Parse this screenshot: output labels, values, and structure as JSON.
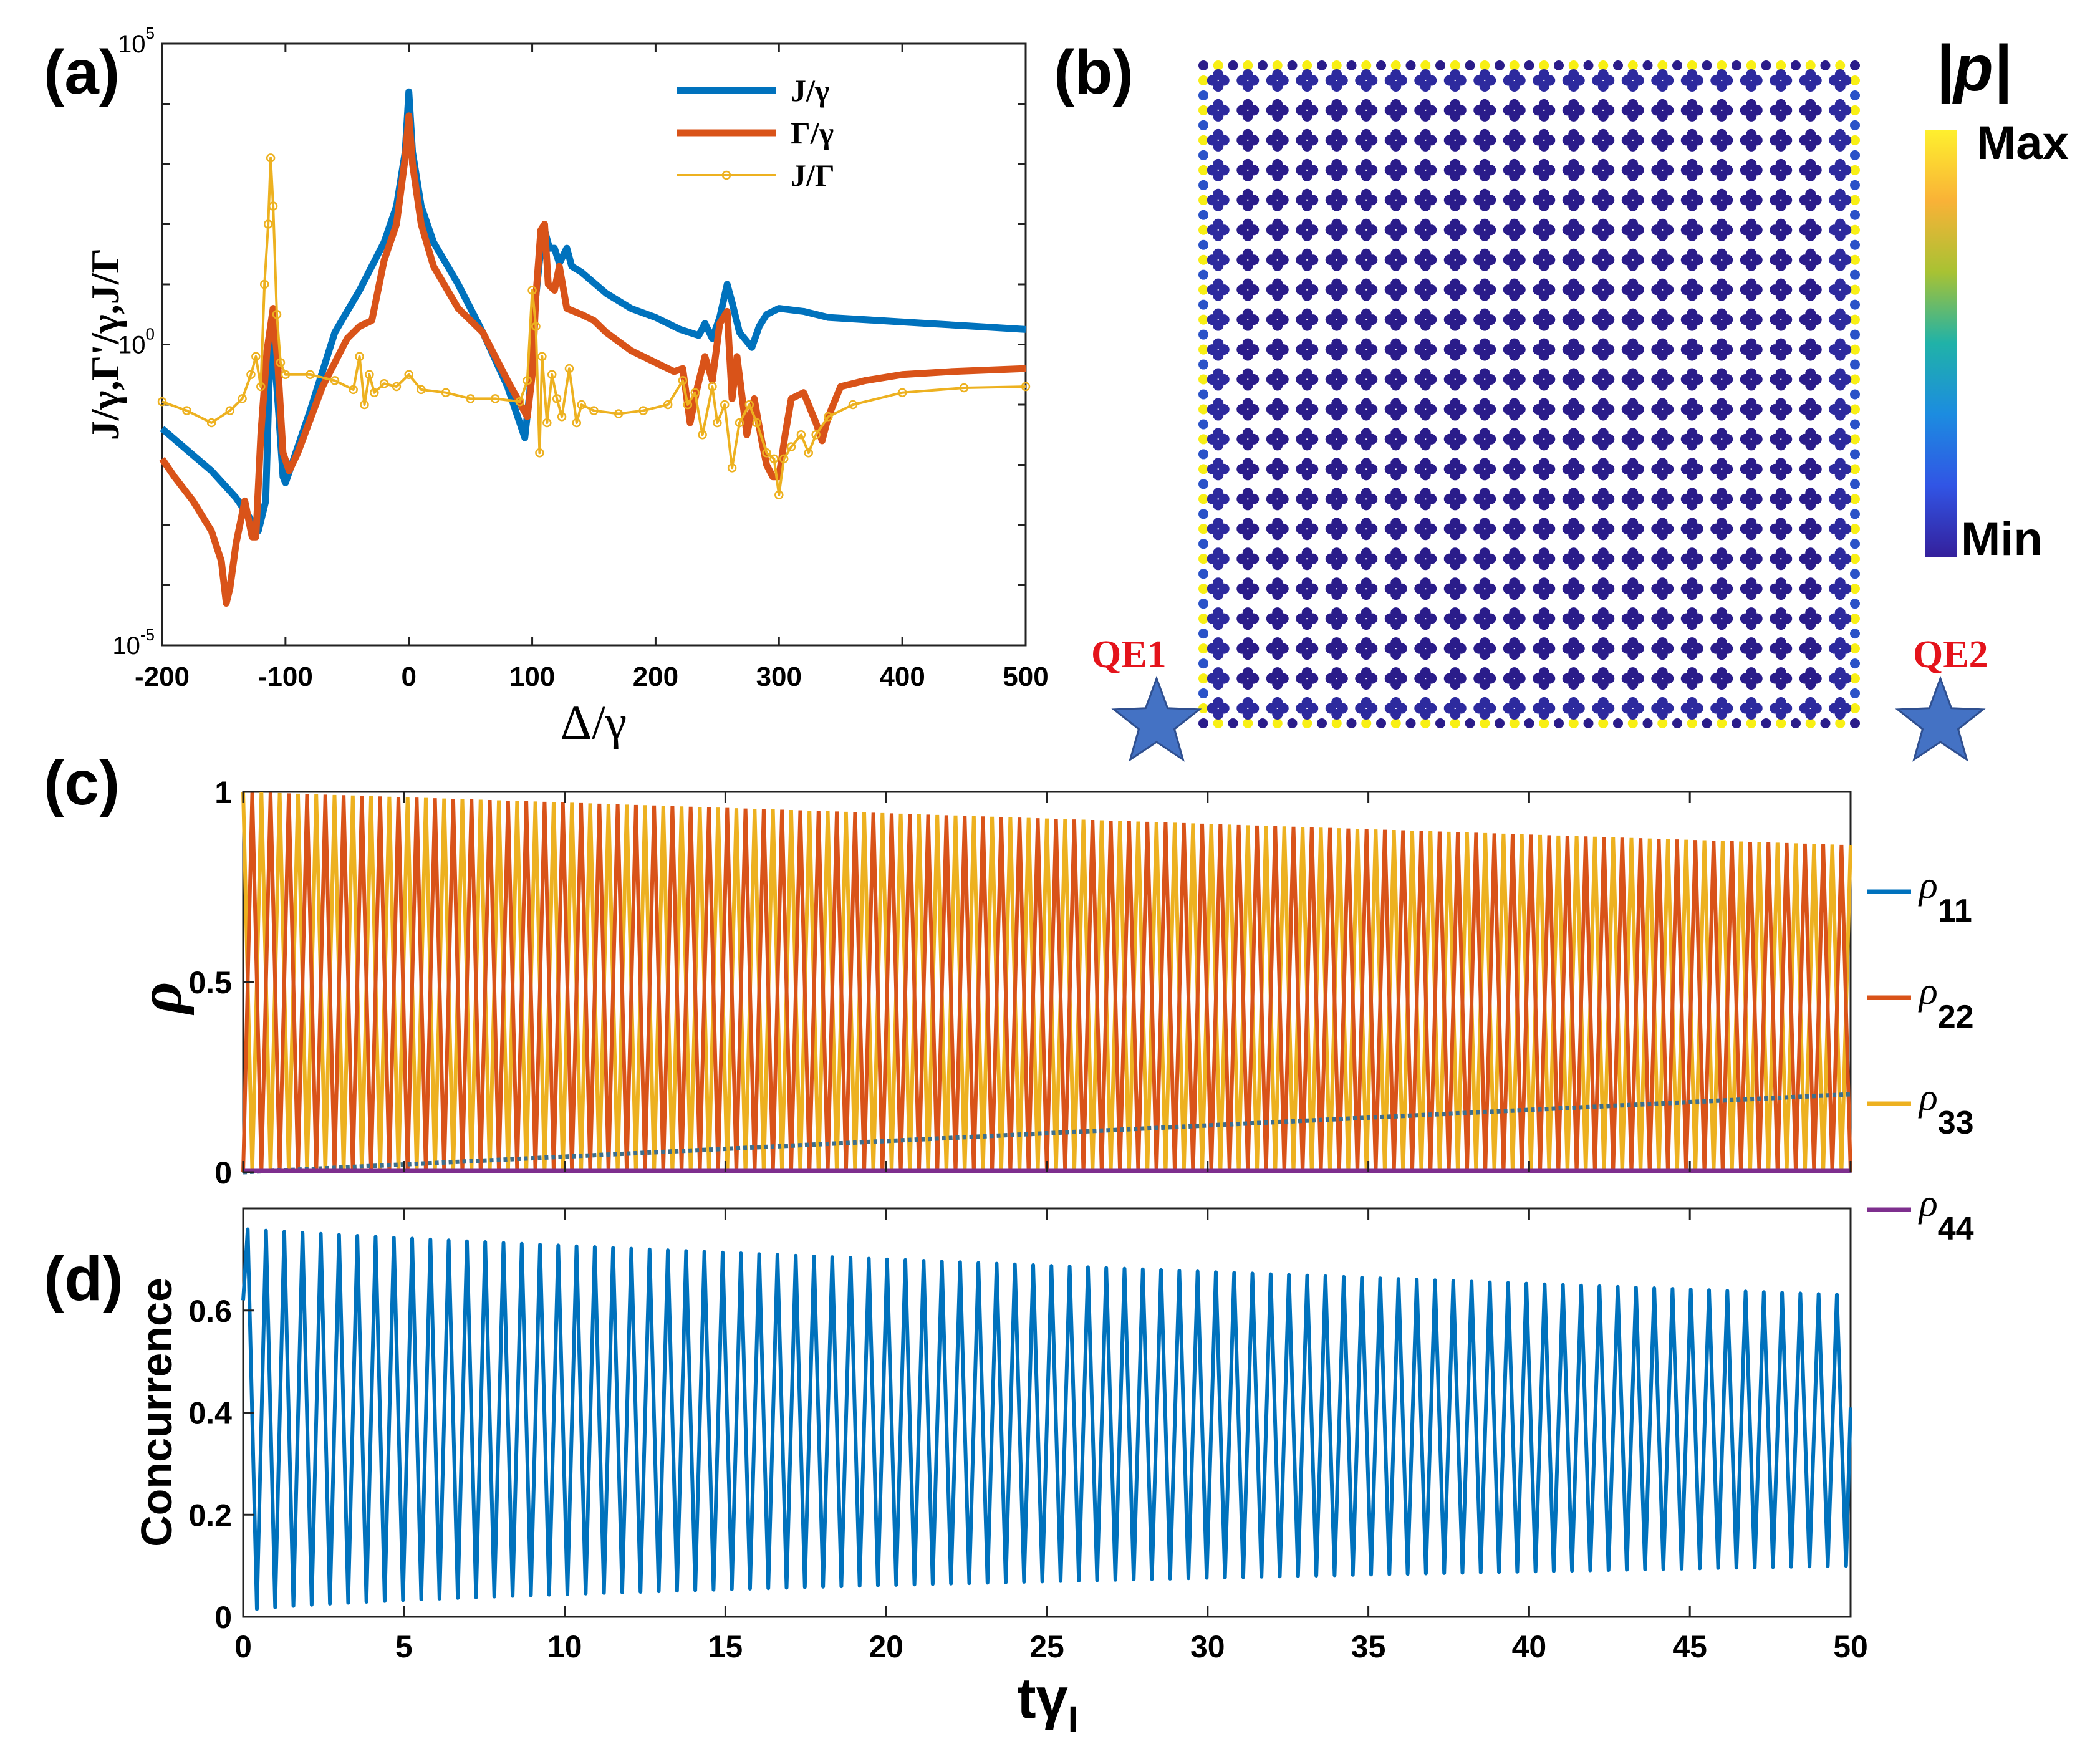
{
  "figure": {
    "panel_labels": [
      "(a)",
      "(b)",
      "(c)",
      "(d)"
    ]
  },
  "chart_data": [
    {
      "panel": "(a)",
      "type": "line",
      "yscale": "log",
      "xlabel": "Δ/γ",
      "ylabel": "J/γ,Γ'/γ,J/Γ",
      "xlim": [
        -200,
        500
      ],
      "ylim_exp": [
        -5,
        5
      ],
      "xticks": [
        "-200",
        "-100",
        "0",
        "100",
        "200",
        "300",
        "400",
        "500"
      ],
      "yticks": [
        {
          "base": "10",
          "exp": "5",
          "value_exp": 5
        },
        {
          "base": "10",
          "exp": "0",
          "value_exp": 0
        },
        {
          "base": "10",
          "exp": "-5",
          "value_exp": -5
        }
      ],
      "legend_position": "top-right",
      "series": [
        {
          "name": "J/γ",
          "color": "#0072bd",
          "width": 11,
          "markers": false,
          "points": [
            [
              -200,
              -1.4
            ],
            [
              -180,
              -1.75
            ],
            [
              -160,
              -2.1
            ],
            [
              -140,
              -2.55
            ],
            [
              -130,
              -2.85
            ],
            [
              -122,
              -3.1
            ],
            [
              -116,
              -2.6
            ],
            [
              -113,
              -0.5
            ],
            [
              -110,
              0.1
            ],
            [
              -106,
              -1.0
            ],
            [
              -102,
              -2.2
            ],
            [
              -100,
              -2.3
            ],
            [
              -80,
              -1.1
            ],
            [
              -60,
              0.2
            ],
            [
              -40,
              0.9
            ],
            [
              -20,
              1.7
            ],
            [
              -10,
              2.3
            ],
            [
              -3,
              3.2
            ],
            [
              0,
              4.2
            ],
            [
              3,
              3.2
            ],
            [
              10,
              2.3
            ],
            [
              20,
              1.7
            ],
            [
              40,
              1.0
            ],
            [
              60,
              0.2
            ],
            [
              80,
              -0.7
            ],
            [
              94,
              -1.55
            ],
            [
              98,
              -0.8
            ],
            [
              102,
              0.6
            ],
            [
              106,
              1.4
            ],
            [
              110,
              1.9
            ],
            [
              114,
              1.6
            ],
            [
              118,
              1.6
            ],
            [
              122,
              1.35
            ],
            [
              128,
              1.6
            ],
            [
              132,
              1.3
            ],
            [
              140,
              1.2
            ],
            [
              160,
              0.85
            ],
            [
              180,
              0.6
            ],
            [
              200,
              0.45
            ],
            [
              220,
              0.25
            ],
            [
              235,
              0.15
            ],
            [
              240,
              0.35
            ],
            [
              246,
              0.1
            ],
            [
              252,
              0.45
            ],
            [
              258,
              1.0
            ],
            [
              262,
              0.7
            ],
            [
              268,
              0.2
            ],
            [
              278,
              -0.05
            ],
            [
              284,
              0.3
            ],
            [
              290,
              0.5
            ],
            [
              300,
              0.6
            ],
            [
              320,
              0.55
            ],
            [
              340,
              0.45
            ],
            [
              380,
              0.4
            ],
            [
              420,
              0.35
            ],
            [
              460,
              0.3
            ],
            [
              500,
              0.25
            ]
          ]
        },
        {
          "name": "Γ/γ",
          "color": "#d95319",
          "width": 11,
          "markers": false,
          "points": [
            [
              -200,
              -1.9
            ],
            [
              -190,
              -2.2
            ],
            [
              -175,
              -2.6
            ],
            [
              -160,
              -3.1
            ],
            [
              -152,
              -3.6
            ],
            [
              -148,
              -4.3
            ],
            [
              -145,
              -4.05
            ],
            [
              -140,
              -3.3
            ],
            [
              -133,
              -2.6
            ],
            [
              -127,
              -3.2
            ],
            [
              -124,
              -3.2
            ],
            [
              -120,
              -1.5
            ],
            [
              -115,
              -0.1
            ],
            [
              -110,
              0.6
            ],
            [
              -106,
              -0.4
            ],
            [
              -102,
              -1.8
            ],
            [
              -97,
              -2.1
            ],
            [
              -90,
              -1.8
            ],
            [
              -70,
              -0.7
            ],
            [
              -50,
              0.1
            ],
            [
              -40,
              0.3
            ],
            [
              -30,
              0.4
            ],
            [
              -20,
              1.4
            ],
            [
              -10,
              2.0
            ],
            [
              -3,
              3.1
            ],
            [
              0,
              3.8
            ],
            [
              3,
              3.0
            ],
            [
              10,
              2.0
            ],
            [
              20,
              1.3
            ],
            [
              40,
              0.6
            ],
            [
              60,
              0.2
            ],
            [
              80,
              -0.6
            ],
            [
              96,
              -1.2
            ],
            [
              100,
              -0.5
            ],
            [
              103,
              0.8
            ],
            [
              107,
              1.9
            ],
            [
              110,
              2.0
            ],
            [
              113,
              1.0
            ],
            [
              118,
              0.9
            ],
            [
              122,
              1.3
            ],
            [
              128,
              0.6
            ],
            [
              140,
              0.5
            ],
            [
              150,
              0.4
            ],
            [
              160,
              0.2
            ],
            [
              180,
              -0.1
            ],
            [
              200,
              -0.3
            ],
            [
              215,
              -0.45
            ],
            [
              222,
              -0.4
            ],
            [
              228,
              -1.3
            ],
            [
              234,
              -0.7
            ],
            [
              240,
              -0.2
            ],
            [
              246,
              -0.6
            ],
            [
              252,
              0.35
            ],
            [
              258,
              0.55
            ],
            [
              262,
              -0.9
            ],
            [
              266,
              -0.2
            ],
            [
              274,
              -1.5
            ],
            [
              280,
              -0.9
            ],
            [
              286,
              -1.6
            ],
            [
              290,
              -2.0
            ],
            [
              295,
              -2.2
            ],
            [
              300,
              -2.2
            ],
            [
              305,
              -1.5
            ],
            [
              310,
              -0.9
            ],
            [
              320,
              -0.8
            ],
            [
              330,
              -1.3
            ],
            [
              335,
              -1.6
            ],
            [
              340,
              -1.2
            ],
            [
              350,
              -0.7
            ],
            [
              370,
              -0.6
            ],
            [
              400,
              -0.5
            ],
            [
              440,
              -0.45
            ],
            [
              500,
              -0.4
            ]
          ]
        },
        {
          "name": "J/Γ",
          "color": "#edb120",
          "width": 4,
          "markers": true,
          "points": [
            [
              -200,
              -0.95
            ],
            [
              -180,
              -1.1
            ],
            [
              -160,
              -1.3
            ],
            [
              -145,
              -1.1
            ],
            [
              -135,
              -0.9
            ],
            [
              -128,
              -0.5
            ],
            [
              -124,
              -0.2
            ],
            [
              -120,
              -0.7
            ],
            [
              -117,
              1.0
            ],
            [
              -114,
              2.0
            ],
            [
              -112,
              3.1
            ],
            [
              -110,
              2.3
            ],
            [
              -107,
              0.5
            ],
            [
              -104,
              -0.3
            ],
            [
              -100,
              -0.5
            ],
            [
              -80,
              -0.5
            ],
            [
              -60,
              -0.6
            ],
            [
              -45,
              -0.75
            ],
            [
              -40,
              -0.2
            ],
            [
              -36,
              -1.0
            ],
            [
              -32,
              -0.5
            ],
            [
              -28,
              -0.8
            ],
            [
              -20,
              -0.65
            ],
            [
              -10,
              -0.7
            ],
            [
              0,
              -0.5
            ],
            [
              10,
              -0.75
            ],
            [
              30,
              -0.8
            ],
            [
              50,
              -0.9
            ],
            [
              70,
              -0.9
            ],
            [
              90,
              -0.95
            ],
            [
              96,
              -0.6
            ],
            [
              100,
              0.9
            ],
            [
              103,
              0.3
            ],
            [
              106,
              -1.8
            ],
            [
              108,
              -0.2
            ],
            [
              112,
              -1.3
            ],
            [
              116,
              -0.5
            ],
            [
              120,
              -0.9
            ],
            [
              124,
              -1.2
            ],
            [
              130,
              -0.4
            ],
            [
              136,
              -1.3
            ],
            [
              140,
              -1.0
            ],
            [
              150,
              -1.1
            ],
            [
              170,
              -1.15
            ],
            [
              190,
              -1.1
            ],
            [
              210,
              -1.0
            ],
            [
              222,
              -0.6
            ],
            [
              226,
              -1.0
            ],
            [
              232,
              -0.8
            ],
            [
              238,
              -1.5
            ],
            [
              246,
              -0.7
            ],
            [
              250,
              -1.3
            ],
            [
              256,
              -1.0
            ],
            [
              262,
              -2.05
            ],
            [
              268,
              -1.3
            ],
            [
              276,
              -1.0
            ],
            [
              282,
              -1.3
            ],
            [
              290,
              -1.8
            ],
            [
              296,
              -1.9
            ],
            [
              300,
              -2.5
            ],
            [
              304,
              -1.9
            ],
            [
              310,
              -1.7
            ],
            [
              318,
              -1.5
            ],
            [
              324,
              -1.8
            ],
            [
              330,
              -1.5
            ],
            [
              340,
              -1.2
            ],
            [
              360,
              -1.0
            ],
            [
              400,
              -0.8
            ],
            [
              450,
              -0.72
            ],
            [
              500,
              -0.7
            ]
          ]
        }
      ]
    },
    {
      "panel": "(b)",
      "type": "heatmap",
      "title": "|p|",
      "colorbar_labels": {
        "max": "Max",
        "min": "Min"
      },
      "colorbar_colors": [
        "#fef02e",
        "#f9b237",
        "#a8c233",
        "#20b2a8",
        "#1c8ce0",
        "#3155e5",
        "#34209c"
      ],
      "edge_value_color": "#f8ef14",
      "interior_value_color": "#2a1c8a",
      "grid_cells": 22,
      "emitters": [
        {
          "label": "QE1",
          "corner": "bottom-left",
          "color": "#e4131b"
        },
        {
          "label": "QE2",
          "corner": "bottom-right",
          "color": "#e4131b"
        }
      ],
      "star_color": "#4472c4"
    },
    {
      "panel": "(c)",
      "type": "line",
      "ylabel": "ρ",
      "xlim": [
        0,
        50
      ],
      "ylim": [
        0,
        1
      ],
      "yticks": [
        "0",
        "0.5",
        "1"
      ],
      "legend_position": "right",
      "oscillation_cycles": 88,
      "series": [
        {
          "name": "ρ",
          "sub": "11",
          "color": "#0072bd",
          "linear": [
            0.0,
            0.205
          ]
        },
        {
          "name": "ρ",
          "sub": "22",
          "color": "#d95319",
          "envelope_max": [
            1.0,
            0.86
          ]
        },
        {
          "name": "ρ",
          "sub": "33",
          "color": "#edb120",
          "envelope_max": [
            1.0,
            0.86
          ]
        },
        {
          "name": "ρ",
          "sub": "44",
          "color": "#7e2f8e",
          "constant": 0.0
        }
      ]
    },
    {
      "panel": "(d)",
      "type": "line",
      "ylabel": "Concurrence",
      "xlabel_main": "tγ",
      "xlabel_sub": "I",
      "xlim": [
        0,
        50
      ],
      "ylim": [
        0,
        0.8
      ],
      "xticks": [
        "0",
        "5",
        "10",
        "15",
        "20",
        "25",
        "30",
        "35",
        "40",
        "45",
        "50"
      ],
      "yticks": [
        "0",
        "0.2",
        "0.4",
        "0.6"
      ],
      "oscillation_cycles": 88,
      "series": [
        {
          "name": "Concurrence",
          "color": "#0072bd",
          "envelope_max": [
            0.76,
            0.63
          ],
          "envelope_min": [
            0.01,
            0.1
          ]
        }
      ]
    }
  ]
}
